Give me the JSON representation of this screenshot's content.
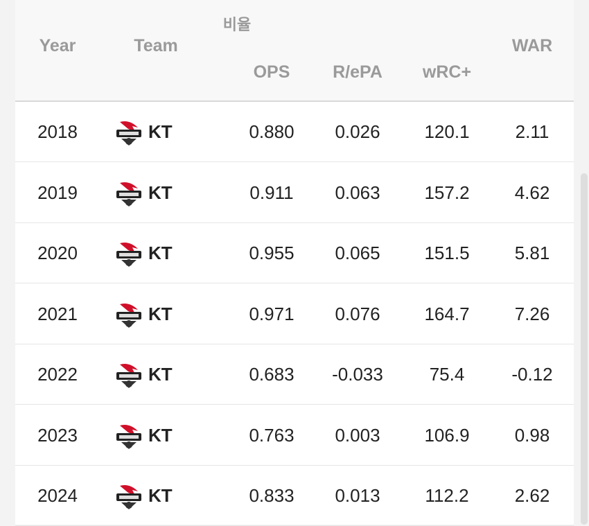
{
  "header": {
    "group": "비율",
    "columns": [
      "Year",
      "Team",
      "OPS",
      "R/ePA",
      "wRC+",
      "WAR"
    ]
  },
  "rows": [
    [
      "2018",
      "KT",
      "0.880",
      "0.026",
      "120.1",
      "2.11"
    ],
    [
      "2019",
      "KT",
      "0.911",
      "0.063",
      "157.2",
      "4.62"
    ],
    [
      "2020",
      "KT",
      "0.955",
      "0.065",
      "151.5",
      "5.81"
    ],
    [
      "2021",
      "KT",
      "0.971",
      "0.076",
      "164.7",
      "7.26"
    ],
    [
      "2022",
      "KT",
      "0.683",
      "-0.033",
      "75.4",
      "-0.12"
    ],
    [
      "2023",
      "KT",
      "0.763",
      "0.003",
      "106.9",
      "0.98"
    ],
    [
      "2024",
      "KT",
      "0.833",
      "0.013",
      "112.2",
      "2.62"
    ]
  ]
}
